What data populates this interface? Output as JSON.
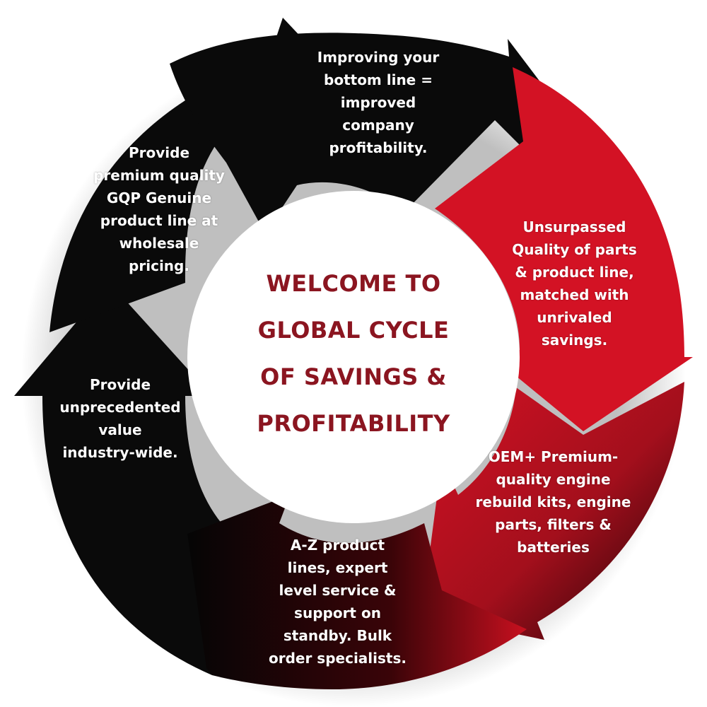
{
  "diagram": {
    "center_title": "WELCOME TO\nGLOBAL CYCLE\nOF SAVINGS &\nPROFITABILITY",
    "segments": [
      {
        "id": "top",
        "text": "Improving your\nbottom line =\nimproved\ncompany\nprofitability."
      },
      {
        "id": "right-upper",
        "text": "Unsurpassed\nQuality of parts\n& product line,\nmatched with\nunrivaled\nsavings."
      },
      {
        "id": "right-lower",
        "text": "OEM+ Premium-\nquality engine\nrebuild kits, engine\nparts, filters &\nbatteries"
      },
      {
        "id": "bottom",
        "text": "A-Z product\nlines, expert\nlevel service &\nsupport on\nstandby. Bulk\norder specialists."
      },
      {
        "id": "left-lower",
        "text": "Provide\nunprecedented\nvalue\nindustry-wide."
      },
      {
        "id": "left-upper",
        "text": "Provide\npremium quality\nGQP Genuine\nproduct line at\nwholesale\npricing."
      }
    ]
  },
  "colors": {
    "black_arrow": "#0a0a0a",
    "red_arrow": "#d31224",
    "title": "#8b1520",
    "label": "#ffffff"
  }
}
